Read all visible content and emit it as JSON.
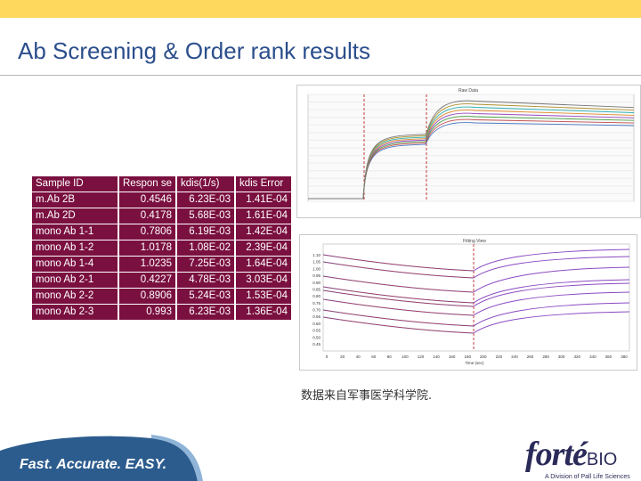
{
  "slide": {
    "title": "Ab Screening & Order rank results",
    "note": "数据来自军事医学科学院.",
    "footer_tagline": "Fast. Accurate. EASY.",
    "logo_main": "forté",
    "logo_bio": "BIO",
    "logo_sub": "A Division of Pall Life Sciences"
  },
  "table": {
    "headers": [
      "Sample ID",
      "Respon se",
      "kdis(1/s)",
      "kdis Error"
    ],
    "rows": [
      [
        "m.Ab 2B",
        "0.4546",
        "6.23E-03",
        "1.41E-04"
      ],
      [
        "m.Ab 2D",
        "0.4178",
        "5.68E-03",
        "1.61E-04"
      ],
      [
        "mono Ab 1-1",
        "0.7806",
        "6.19E-03",
        "1.42E-04"
      ],
      [
        "mono Ab 1-2",
        "1.0178",
        "1.08E-02",
        "2.39E-04"
      ],
      [
        "mono Ab 1-4",
        "1.0235",
        "7.25E-03",
        "1.64E-04"
      ],
      [
        "mono Ab 2-1",
        "0.4227",
        "4.78E-03",
        "3.03E-04"
      ],
      [
        "mono Ab 2-2",
        "0.8906",
        "5.24E-03",
        "1.53E-04"
      ],
      [
        "mono Ab 2-3",
        "0.993",
        "6.23E-03",
        "1.36E-04"
      ]
    ]
  },
  "charts": {
    "top_title": "Raw Data",
    "bottom_title": "Fitting View",
    "bottom_xlabel": "Time (sec)",
    "bottom_y_ticks": [
      "1.10",
      "1.05",
      "1.00",
      "0.95",
      "0.90",
      "0.85",
      "0.80",
      "0.75",
      "0.70",
      "0.65",
      "0.60",
      "0.55",
      "0.50",
      "0.45"
    ],
    "bottom_x_ticks": [
      "0",
      "20",
      "40",
      "60",
      "80",
      "100",
      "120",
      "140",
      "160",
      "180",
      "200",
      "220",
      "240",
      "260",
      "280",
      "300",
      "320",
      "340",
      "360",
      "380"
    ]
  },
  "colors": {
    "title": "#2b4e8c",
    "top_bar": "#fdd85d",
    "table_bg": "#7a1040",
    "footer": "#2c5c8e"
  }
}
